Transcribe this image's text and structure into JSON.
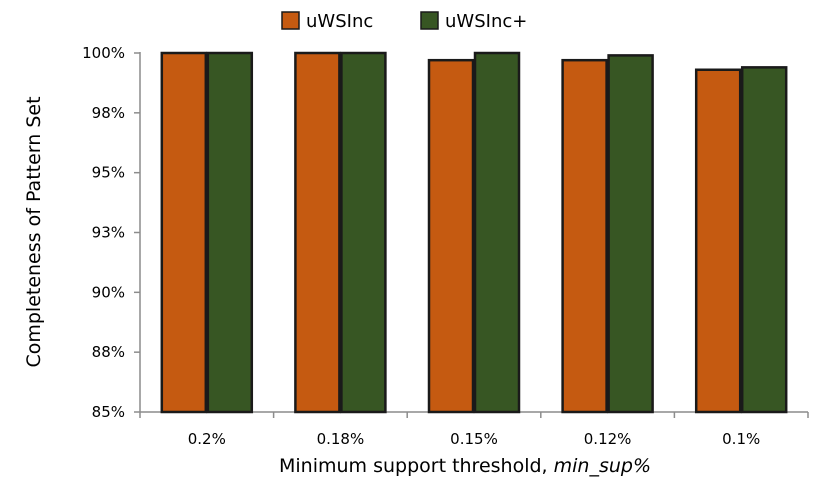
{
  "chart_data": {
    "type": "bar",
    "title": "",
    "xlabel_prefix": "Minimum support threshold, ",
    "xlabel_italic": "min_sup%",
    "ylabel": "Completeness of Pattern Set",
    "categories": [
      "0.2%",
      "0.18%",
      "0.15%",
      "0.12%",
      "0.1%"
    ],
    "series": [
      {
        "name": "uWSInc",
        "color": "#c55a11",
        "values": [
          100.0,
          100.0,
          99.7,
          99.7,
          99.3
        ]
      },
      {
        "name": "uWSInc+",
        "color": "#375623",
        "values": [
          100.0,
          100.0,
          100.0,
          99.9,
          99.4
        ]
      }
    ],
    "ylim": [
      85,
      100
    ],
    "yticks": [
      85,
      87.5,
      90,
      92.5,
      95,
      97.5,
      100
    ],
    "ytick_labels": [
      "85%",
      "88%",
      "90%",
      "93%",
      "95%",
      "98%",
      "100%"
    ],
    "grid": false,
    "legend_position": "top"
  }
}
